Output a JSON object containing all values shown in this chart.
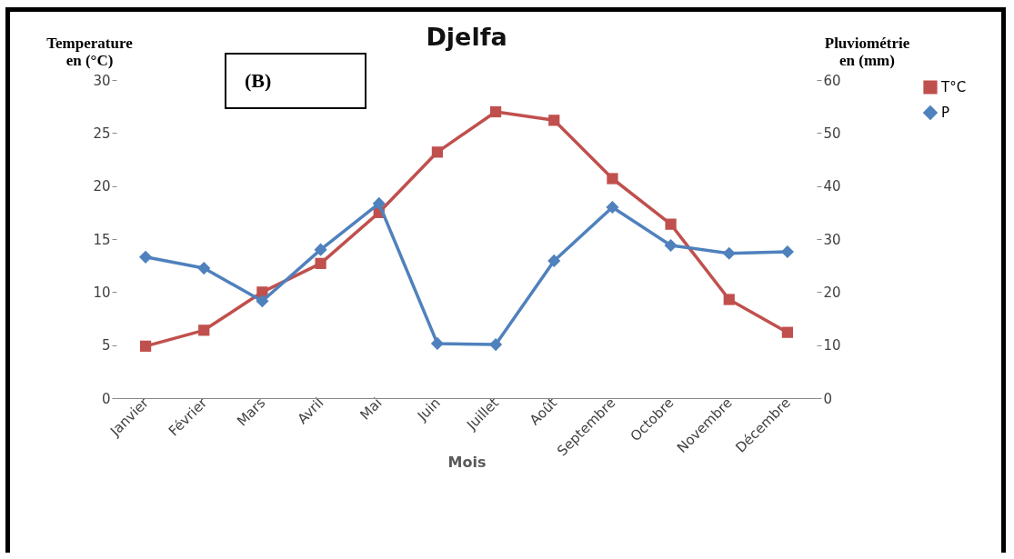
{
  "chart_data": {
    "type": "line",
    "title": "Djelfa",
    "annotations": [
      "(B)"
    ],
    "xlabel": "Mois",
    "ylabel": "Temperature\nen (°C)",
    "y2label": "Pluviométrie\nen (mm)",
    "categories": [
      "Janvier",
      "Février",
      "Mars",
      "Avril",
      "Mai",
      "Juin",
      "Juillet",
      "Août",
      "Septembre",
      "Octobre",
      "Novembre",
      "Décembre"
    ],
    "series": [
      {
        "name": "T°C",
        "color": "#c0504d",
        "marker": "square",
        "values": [
          4.9,
          6.4,
          10.0,
          12.7,
          17.5,
          23.2,
          27.0,
          26.2,
          20.7,
          16.4,
          9.3,
          6.2
        ]
      },
      {
        "name": "P",
        "color": "#4f81bd",
        "marker": "diamond",
        "axis": "y2",
        "values": [
          26.6,
          24.5,
          18.3,
          28.0,
          36.7,
          10.3,
          10.1,
          25.9,
          36.0,
          28.8,
          27.3,
          27.6
        ]
      }
    ],
    "ylim": [
      0,
      30
    ],
    "yticks": [
      0,
      5,
      10,
      15,
      20,
      25,
      30
    ],
    "y2lim": [
      0,
      60
    ],
    "y2ticks": [
      0,
      10,
      20,
      30,
      40,
      50,
      60
    ],
    "grid": false,
    "legend": "right"
  }
}
